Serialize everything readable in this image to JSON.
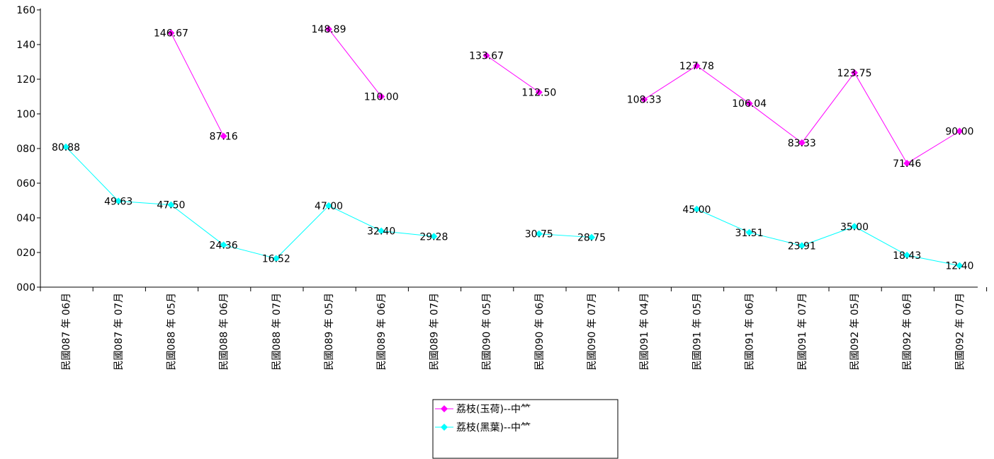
{
  "chart_data": {
    "type": "line",
    "title": "",
    "xlabel": "",
    "ylabel": "",
    "ylim": [
      0,
      160
    ],
    "y_ticks": [
      "000",
      "020",
      "040",
      "060",
      "080",
      "100",
      "120",
      "140",
      "160"
    ],
    "y_tick_values": [
      0,
      20,
      40,
      60,
      80,
      100,
      120,
      140,
      160
    ],
    "grid": false,
    "legend_position": "bottom",
    "categories": [
      "民國087 年 06月",
      "民國087 年 07月",
      "民國088 年 05月",
      "民國088 年 06月",
      "民國088 年 07月",
      "民國089 年 05月",
      "民國089 年 06月",
      "民國089 年 07月",
      "民國090 年 05月",
      "民國090 年 06月",
      "民國090 年 07月",
      "民國091 年 04月",
      "民國091 年 05月",
      "民國091 年 06月",
      "民國091 年 07月",
      "民國092 年 05月",
      "民國092 年 06月",
      "民國092 年 07月"
    ],
    "series": [
      {
        "name": "荔枝(玉荷)--中⺮",
        "color": "#ff00ff",
        "values": [
          null,
          null,
          146.67,
          87.16,
          null,
          148.89,
          110.0,
          null,
          133.67,
          112.5,
          null,
          108.33,
          127.78,
          106.04,
          83.33,
          123.75,
          71.46,
          90.0
        ],
        "labels": [
          null,
          null,
          "146.67",
          "87.16",
          null,
          "148.89",
          "110.00",
          null,
          "133.67",
          "112.50",
          null,
          "108.33",
          "127.78",
          "106.04",
          "83.33",
          "123.75",
          "71.46",
          "90.00"
        ]
      },
      {
        "name": "荔枝(黑葉)--中⺮",
        "color": "#00ffff",
        "values": [
          80.88,
          49.63,
          47.5,
          24.36,
          16.52,
          47.0,
          32.4,
          29.28,
          null,
          30.75,
          28.75,
          null,
          45.0,
          31.51,
          23.91,
          35.0,
          18.43,
          12.4
        ],
        "labels": [
          "80.88",
          "49.63",
          "47.50",
          "24.36",
          "16.52",
          "47.00",
          "32.40",
          "29.28",
          null,
          "30.75",
          "28.75",
          null,
          "45.00",
          "31.51",
          "23.91",
          "35.00",
          "18.43",
          "12.40"
        ]
      }
    ]
  }
}
